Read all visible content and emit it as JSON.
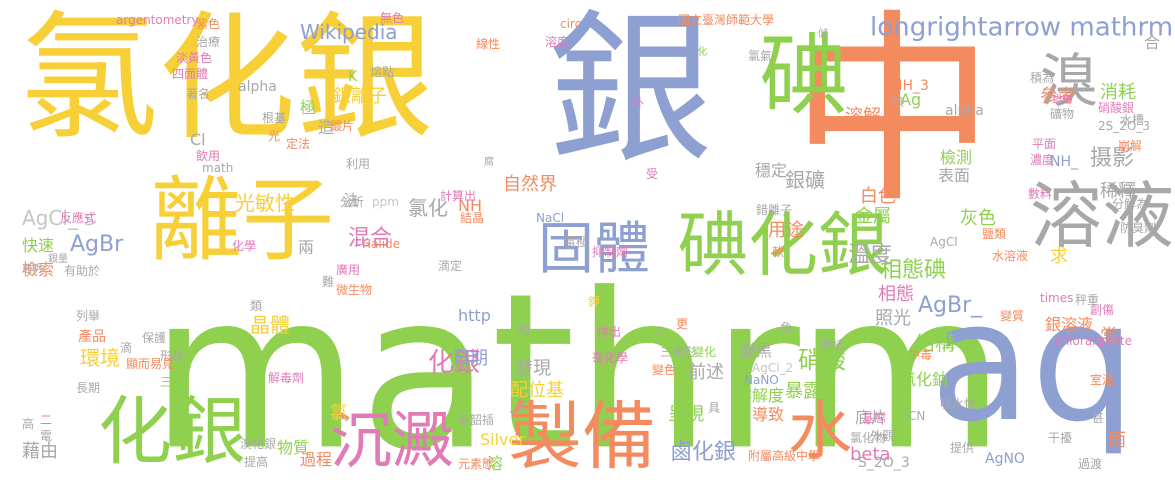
{
  "palette": {
    "yellow": "#f7d038",
    "green": "#8fd14f",
    "blue": "#8e9fd1",
    "orange": "#f48b5f",
    "gray": "#a8a8a8",
    "pink": "#e07bb8",
    "olive": "#b5c93a",
    "lightgray": "#c6c6c6"
  },
  "words": [
    {
      "text": "mathrm",
      "color": "green"
    },
    {
      "text": "中",
      "color": "orange"
    },
    {
      "text": "氯化銀",
      "color": "yellow"
    },
    {
      "text": "銀",
      "color": "blue"
    },
    {
      "text": "aq",
      "color": "blue"
    },
    {
      "text": "碘",
      "color": "green"
    },
    {
      "text": "離子",
      "color": "yellow"
    },
    {
      "text": "溶液",
      "color": "gray"
    },
    {
      "text": "化銀",
      "color": "green"
    },
    {
      "text": "製備",
      "color": "orange"
    },
    {
      "text": "碘化銀",
      "color": "green"
    },
    {
      "text": "固體",
      "color": "blue"
    },
    {
      "text": "沉澱",
      "color": "pink"
    },
    {
      "text": "水",
      "color": "orange"
    },
    {
      "text": "溴",
      "color": "gray"
    },
    {
      "text": "longrightarrow mathrm",
      "color": "blue"
    },
    {
      "text": "Wikipedia",
      "color": "blue"
    },
    {
      "text": "AgBr",
      "color": "blue"
    },
    {
      "text": "AgBr_",
      "color": "blue"
    },
    {
      "text": "AgCl_ s",
      "color": "lightgray"
    },
    {
      "text": "化銀",
      "color": "pink"
    },
    {
      "text": "硝酸",
      "color": "green"
    },
    {
      "text": "鹵化銀",
      "color": "blue"
    },
    {
      "text": "相態碘",
      "color": "green"
    },
    {
      "text": "溶解",
      "color": "orange"
    },
    {
      "text": "銀礦",
      "color": "gray"
    },
    {
      "text": "光敏性",
      "color": "yellow"
    },
    {
      "text": "結構",
      "color": "green"
    },
    {
      "text": "摄影",
      "color": "gray"
    },
    {
      "text": "溫度",
      "color": "gray"
    },
    {
      "text": "混合",
      "color": "pink"
    },
    {
      "text": "晶體",
      "color": "yellow"
    },
    {
      "text": "環境",
      "color": "yellow"
    },
    {
      "text": "氯化",
      "color": "gray"
    },
    {
      "text": "稀釋",
      "color": "gray"
    },
    {
      "text": "消耗",
      "color": "green"
    },
    {
      "text": "參考",
      "color": "orange"
    },
    {
      "text": "照光",
      "color": "gray"
    },
    {
      "text": "金屬",
      "color": "green"
    },
    {
      "text": "白色",
      "color": "orange"
    },
    {
      "text": "相態",
      "color": "pink"
    },
    {
      "text": "用途",
      "color": "orange"
    },
    {
      "text": "灰色",
      "color": "green"
    },
    {
      "text": "暴露",
      "color": "green"
    },
    {
      "text": "呈現",
      "color": "green"
    },
    {
      "text": "前述",
      "color": "gray"
    },
    {
      "text": "配位基",
      "color": "yellow"
    },
    {
      "text": "發現",
      "color": "gray"
    },
    {
      "text": "日期",
      "color": "blue"
    },
    {
      "text": "自然界",
      "color": "orange"
    },
    {
      "text": "表面",
      "color": "gray"
    },
    {
      "text": "檢測",
      "color": "green"
    },
    {
      "text": "穩定",
      "color": "gray"
    },
    {
      "text": "底片",
      "color": "gray"
    },
    {
      "text": "溶解度",
      "color": "green"
    },
    {
      "text": "導致",
      "color": "orange"
    },
    {
      "text": "變黑",
      "color": "gray"
    },
    {
      "text": "銀溶液",
      "color": "orange"
    },
    {
      "text": "銀離子",
      "color": "yellow"
    },
    {
      "text": "氯化鈉",
      "color": "green"
    },
    {
      "text": "藉由",
      "color": "gray"
    },
    {
      "text": "快速",
      "color": "green"
    },
    {
      "text": "檢索",
      "color": "orange"
    },
    {
      "text": "物質",
      "color": "green"
    },
    {
      "text": "過程",
      "color": "orange"
    },
    {
      "text": "beta",
      "color": "pink"
    },
    {
      "text": "Silver",
      "color": "yellow"
    },
    {
      "text": "http",
      "color": "blue"
    },
    {
      "text": "S_2O_3",
      "color": "gray"
    },
    {
      "text": "AgNO",
      "color": "blue"
    },
    {
      "text": "NH_3",
      "color": "orange"
    },
    {
      "text": "NH_",
      "color": "blue"
    },
    {
      "text": "Ag",
      "color": "green"
    },
    {
      "text": "Cl",
      "color": "gray"
    },
    {
      "text": "alpha",
      "color": "gray"
    },
    {
      "text": "NH",
      "color": "orange"
    },
    {
      "text": "合",
      "color": "gray"
    },
    {
      "text": "常",
      "color": "orange"
    },
    {
      "text": "求",
      "color": "yellow"
    },
    {
      "text": "雨",
      "color": "orange"
    },
    {
      "text": "氯",
      "color": "yellow"
    },
    {
      "text": "溶",
      "color": "green"
    },
    {
      "text": "造",
      "color": "gray"
    },
    {
      "text": "極",
      "color": "green"
    },
    {
      "text": "法",
      "color": "gray"
    },
    {
      "text": "兩",
      "color": "gray"
    },
    {
      "text": "_2",
      "color": "gray"
    },
    {
      "text": "argentometry",
      "color": "pink"
    },
    {
      "text": "紫色",
      "color": "orange"
    },
    {
      "text": "治療",
      "color": "gray"
    },
    {
      "text": "淡黃色",
      "color": "pink"
    },
    {
      "text": "四面體",
      "color": "pink"
    },
    {
      "text": "著名",
      "color": "gray"
    },
    {
      "text": "無色",
      "color": "pink"
    },
    {
      "text": "線性",
      "color": "orange"
    },
    {
      "text": "熔點",
      "color": "gray"
    },
    {
      "text": "國立臺灣師範大學",
      "color": "orange"
    },
    {
      "text": "circ",
      "color": "orange"
    },
    {
      "text": "溶度",
      "color": "pink"
    },
    {
      "text": "化",
      "color": "green"
    },
    {
      "text": "氯氣",
      "color": "gray"
    },
    {
      "text": "積為",
      "color": "gray"
    },
    {
      "text": "硝酸銀",
      "color": "pink"
    },
    {
      "text": "礦物",
      "color": "gray"
    },
    {
      "text": "鍋爐",
      "color": "pink"
    },
    {
      "text": "2S_2O_3",
      "color": "gray"
    },
    {
      "text": "水槽",
      "color": "gray"
    },
    {
      "text": "崩解",
      "color": "orange"
    },
    {
      "text": "平面",
      "color": "pink"
    },
    {
      "text": "濃度",
      "color": "pink"
    },
    {
      "text": "數料",
      "color": "pink"
    },
    {
      "text": "分解為",
      "color": "gray"
    },
    {
      "text": "防臭劑",
      "color": "gray"
    },
    {
      "text": "K",
      "color": "green"
    },
    {
      "text": "alpha",
      "color": "gray"
    },
    {
      "text": "鍍片",
      "color": "orange"
    },
    {
      "text": "定法",
      "color": "orange"
    },
    {
      "text": "根基",
      "color": "gray"
    },
    {
      "text": "光",
      "color": "orange"
    },
    {
      "text": "飲用",
      "color": "pink"
    },
    {
      "text": "math",
      "color": "gray"
    },
    {
      "text": "利用",
      "color": "gray"
    },
    {
      "text": "分析",
      "color": "gray"
    },
    {
      "text": "ppm",
      "color": "lightgray"
    },
    {
      "text": "計算出",
      "color": "pink"
    },
    {
      "text": "結晶",
      "color": "orange"
    },
    {
      "text": "NaCl_",
      "color": "blue"
    },
    {
      "text": "錯離子",
      "color": "gray"
    },
    {
      "text": "反應式",
      "color": "pink"
    },
    {
      "text": "化學",
      "color": "pink"
    },
    {
      "text": "Halide",
      "color": "orange"
    },
    {
      "text": "滴定",
      "color": "gray"
    },
    {
      "text": "電極",
      "color": "gray"
    },
    {
      "text": "抑制劑",
      "color": "pink"
    },
    {
      "text": "軟",
      "color": "orange"
    },
    {
      "text": "水溶液",
      "color": "orange"
    },
    {
      "text": "鹽類",
      "color": "orange"
    },
    {
      "text": "AgCl",
      "color": "gray"
    },
    {
      "text": "透明",
      "color": "gray"
    },
    {
      "text": "銀量",
      "color": "gray"
    },
    {
      "text": "有助於",
      "color": "gray"
    },
    {
      "text": "廣用",
      "color": "pink"
    },
    {
      "text": "微生物",
      "color": "orange"
    },
    {
      "text": "類",
      "color": "gray"
    },
    {
      "text": "鉀",
      "color": "yellow"
    },
    {
      "text": "列舉",
      "color": "gray"
    },
    {
      "text": "產品",
      "color": "orange"
    },
    {
      "text": "保護",
      "color": "gray"
    },
    {
      "text": "滴",
      "color": "gray"
    },
    {
      "text": "形狀",
      "color": "gray"
    },
    {
      "text": "顯而易見",
      "color": "orange"
    },
    {
      "text": "長期",
      "color": "gray"
    },
    {
      "text": "三苯",
      "color": "green"
    },
    {
      "text": "解毒劑",
      "color": "pink"
    },
    {
      "text": "約",
      "color": "gray"
    },
    {
      "text": "更",
      "color": "orange"
    },
    {
      "text": "角",
      "color": "gray"
    },
    {
      "text": "排出",
      "color": "pink"
    },
    {
      "text": "C",
      "color": "gray"
    },
    {
      "text": "三角形",
      "color": "gray"
    },
    {
      "text": "變化",
      "color": "green"
    },
    {
      "text": "NaNO",
      "color": "blue"
    },
    {
      "text": "毫化學",
      "color": "pink"
    },
    {
      "text": "AgCl_2",
      "color": "lightgray"
    },
    {
      "text": "變色",
      "color": "orange"
    },
    {
      "text": "中毒",
      "color": "orange"
    },
    {
      "text": "連結",
      "color": "gray"
    },
    {
      "text": "chlorargyrite",
      "color": "pink"
    },
    {
      "text": "室溫",
      "color": "orange"
    },
    {
      "text": "秤重",
      "color": "gray"
    },
    {
      "text": "變質",
      "color": "orange"
    },
    {
      "text": "times",
      "color": "pink"
    },
    {
      "text": "創傷",
      "color": "pink"
    },
    {
      "text": "吸水性",
      "color": "gray"
    },
    {
      "text": "基態",
      "color": "pink"
    },
    {
      "text": "CN",
      "color": "gray"
    },
    {
      "text": "外觀",
      "color": "gray"
    },
    {
      "text": "氯化物",
      "color": "gray"
    },
    {
      "text": "提供",
      "color": "gray"
    },
    {
      "text": "干擾",
      "color": "gray"
    },
    {
      "text": "過渡",
      "color": "gray"
    },
    {
      "text": "附屬高級中學",
      "color": "orange"
    },
    {
      "text": "蔡韶插",
      "color": "gray"
    },
    {
      "text": "溴化銀",
      "color": "gray"
    },
    {
      "text": "提高",
      "color": "gray"
    },
    {
      "text": "元素態",
      "color": "orange"
    },
    {
      "text": "二",
      "color": "pink"
    },
    {
      "text": "電",
      "color": "gray"
    },
    {
      "text": "高",
      "color": "gray"
    },
    {
      "text": "甚",
      "color": "gray"
    },
    {
      "text": "熱",
      "color": "gray"
    },
    {
      "text": "儲",
      "color": "gray"
    },
    {
      "text": "外",
      "color": "pink"
    },
    {
      "text": "受",
      "color": "pink"
    },
    {
      "text": "腐",
      "color": "gray"
    },
    {
      "text": "具",
      "color": "gray"
    },
    {
      "text": "難",
      "color": "gray"
    }
  ]
}
